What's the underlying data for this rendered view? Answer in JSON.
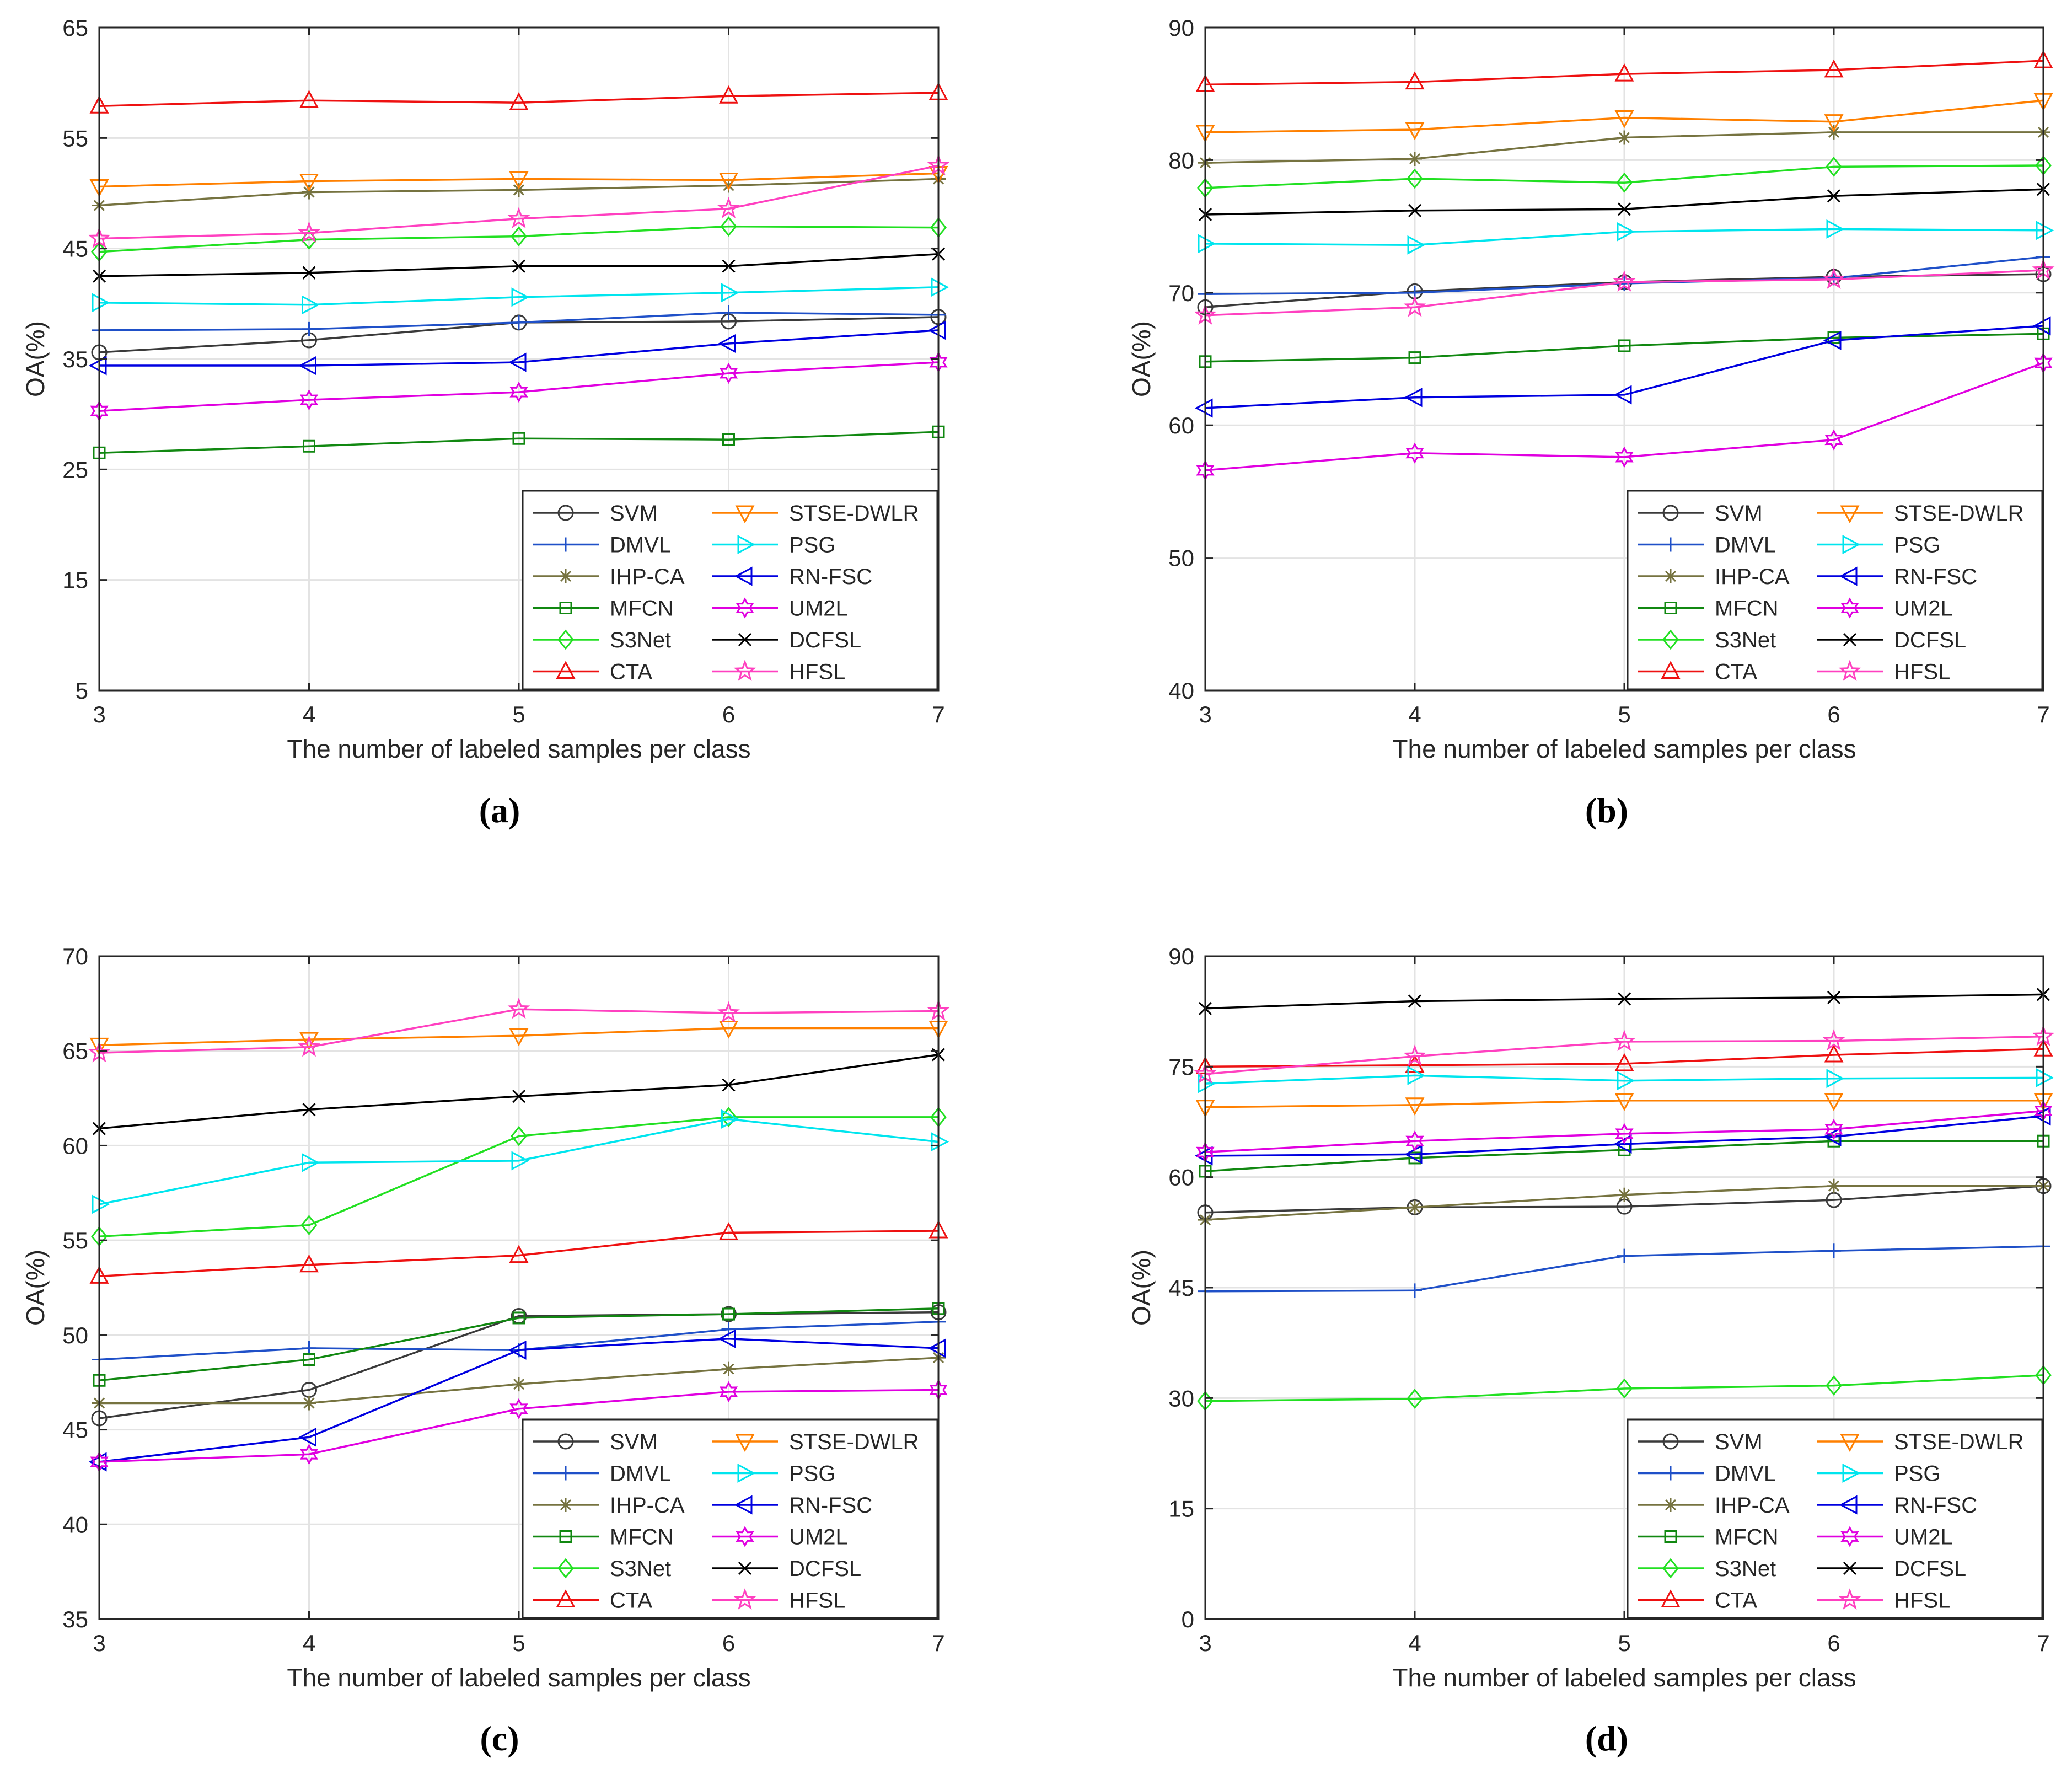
{
  "figure": {
    "captions": [
      "(a)",
      "(b)",
      "(c)",
      "(d)"
    ]
  },
  "legend_style": [
    {
      "name": "SVM",
      "color": "#3a3a3a",
      "marker": "circle"
    },
    {
      "name": "DMVL",
      "color": "#1f50c8",
      "marker": "plus"
    },
    {
      "name": "IHP-CA",
      "color": "#767340",
      "marker": "asterisk"
    },
    {
      "name": "MFCN",
      "color": "#118811",
      "marker": "square"
    },
    {
      "name": "S3Net",
      "color": "#22e022",
      "marker": "diamond"
    },
    {
      "name": "CTA",
      "color": "#ee1111",
      "marker": "triangle-up"
    },
    {
      "name": "STSE-DWLR",
      "color": "#ff8000",
      "marker": "triangle-down"
    },
    {
      "name": "PSG",
      "color": "#00e5ee",
      "marker": "triangle-right"
    },
    {
      "name": "RN-FSC",
      "color": "#0000e0",
      "marker": "triangle-left"
    },
    {
      "name": "UM2L",
      "color": "#e000e0",
      "marker": "hexagram"
    },
    {
      "name": "DCFSL",
      "color": "#000000",
      "marker": "x"
    },
    {
      "name": "HFSL",
      "color": "#ff40c0",
      "marker": "pentagram"
    }
  ],
  "chart_data": [
    {
      "type": "line",
      "caption": "(a)",
      "xlabel": "The number of labeled samples per class",
      "ylabel": "OA(%)",
      "x": [
        3,
        4,
        5,
        6,
        7
      ],
      "xlim": [
        3,
        7
      ],
      "ylim": [
        5,
        65
      ],
      "yticks": [
        5,
        15,
        25,
        35,
        45,
        55,
        65
      ],
      "grid": true,
      "legend_position": "bottom-right",
      "series": [
        {
          "name": "SVM",
          "values": [
            35.6,
            36.7,
            38.3,
            38.4,
            38.8
          ]
        },
        {
          "name": "DMVL",
          "values": [
            37.6,
            37.7,
            38.3,
            39.2,
            39.0
          ]
        },
        {
          "name": "IHP-CA",
          "values": [
            48.9,
            50.1,
            50.3,
            50.7,
            51.3
          ]
        },
        {
          "name": "MFCN",
          "values": [
            26.5,
            27.1,
            27.8,
            27.7,
            28.4
          ]
        },
        {
          "name": "S3Net",
          "values": [
            44.7,
            45.8,
            46.1,
            47.0,
            46.9
          ]
        },
        {
          "name": "CTA",
          "values": [
            57.9,
            58.4,
            58.2,
            58.8,
            59.1
          ]
        },
        {
          "name": "STSE-DWLR",
          "values": [
            50.6,
            51.1,
            51.3,
            51.2,
            51.8
          ]
        },
        {
          "name": "PSG",
          "values": [
            40.1,
            39.9,
            40.6,
            41.0,
            41.5
          ]
        },
        {
          "name": "RN-FSC",
          "values": [
            34.4,
            34.4,
            34.7,
            36.4,
            37.6
          ]
        },
        {
          "name": "UM2L",
          "values": [
            30.3,
            31.3,
            32.0,
            33.7,
            34.7
          ]
        },
        {
          "name": "DCFSL",
          "values": [
            42.5,
            42.8,
            43.4,
            43.4,
            44.5
          ]
        },
        {
          "name": "HFSL",
          "values": [
            45.9,
            46.4,
            47.7,
            48.6,
            52.5
          ]
        }
      ]
    },
    {
      "type": "line",
      "caption": "(b)",
      "xlabel": "The number of labeled samples per class",
      "ylabel": "OA(%)",
      "x": [
        3,
        4,
        5,
        6,
        7
      ],
      "xlim": [
        3,
        7
      ],
      "ylim": [
        40,
        90
      ],
      "yticks": [
        40,
        50,
        60,
        70,
        80,
        90
      ],
      "grid": true,
      "legend_position": "bottom-right",
      "series": [
        {
          "name": "SVM",
          "values": [
            68.9,
            70.1,
            70.8,
            71.2,
            71.4
          ]
        },
        {
          "name": "DMVL",
          "values": [
            69.9,
            70.0,
            70.7,
            71.1,
            72.7
          ]
        },
        {
          "name": "IHP-CA",
          "values": [
            79.8,
            80.1,
            81.7,
            82.1,
            82.1
          ]
        },
        {
          "name": "MFCN",
          "values": [
            64.8,
            65.1,
            66.0,
            66.6,
            66.9
          ]
        },
        {
          "name": "S3Net",
          "values": [
            77.9,
            78.6,
            78.3,
            79.5,
            79.6
          ]
        },
        {
          "name": "CTA",
          "values": [
            85.7,
            85.9,
            86.5,
            86.8,
            87.5
          ]
        },
        {
          "name": "STSE-DWLR",
          "values": [
            82.1,
            82.3,
            83.2,
            82.9,
            84.5
          ]
        },
        {
          "name": "PSG",
          "values": [
            73.7,
            73.6,
            74.6,
            74.8,
            74.7
          ]
        },
        {
          "name": "RN-FSC",
          "values": [
            61.3,
            62.1,
            62.3,
            66.4,
            67.5
          ]
        },
        {
          "name": "UM2L",
          "values": [
            56.6,
            57.9,
            57.6,
            58.9,
            64.7
          ]
        },
        {
          "name": "DCFSL",
          "values": [
            75.9,
            76.2,
            76.3,
            77.3,
            77.8
          ]
        },
        {
          "name": "HFSL",
          "values": [
            68.3,
            68.9,
            70.8,
            71.0,
            71.7
          ]
        }
      ]
    },
    {
      "type": "line",
      "caption": "(c)",
      "xlabel": "The number of labeled samples per class",
      "ylabel": "OA(%)",
      "x": [
        3,
        4,
        5,
        6,
        7
      ],
      "xlim": [
        3,
        7
      ],
      "ylim": [
        35,
        70
      ],
      "yticks": [
        35,
        40,
        45,
        50,
        55,
        60,
        65,
        70
      ],
      "grid": true,
      "legend_position": "bottom-right",
      "series": [
        {
          "name": "SVM",
          "values": [
            45.6,
            47.1,
            51.0,
            51.1,
            51.2
          ]
        },
        {
          "name": "DMVL",
          "values": [
            48.7,
            49.3,
            49.2,
            50.3,
            50.7
          ]
        },
        {
          "name": "IHP-CA",
          "values": [
            46.4,
            46.4,
            47.4,
            48.2,
            48.8
          ]
        },
        {
          "name": "MFCN",
          "values": [
            47.6,
            48.7,
            50.9,
            51.1,
            51.4
          ]
        },
        {
          "name": "S3Net",
          "values": [
            55.2,
            55.8,
            60.5,
            61.5,
            61.5
          ]
        },
        {
          "name": "CTA",
          "values": [
            53.1,
            53.7,
            54.2,
            55.4,
            55.5
          ]
        },
        {
          "name": "STSE-DWLR",
          "values": [
            65.3,
            65.6,
            65.8,
            66.2,
            66.2
          ]
        },
        {
          "name": "PSG",
          "values": [
            56.9,
            59.1,
            59.2,
            61.4,
            60.2
          ]
        },
        {
          "name": "RN-FSC",
          "values": [
            43.3,
            44.6,
            49.2,
            49.8,
            49.3
          ]
        },
        {
          "name": "UM2L",
          "values": [
            43.3,
            43.7,
            46.1,
            47.0,
            47.1
          ]
        },
        {
          "name": "DCFSL",
          "values": [
            60.9,
            61.9,
            62.6,
            63.2,
            64.8
          ]
        },
        {
          "name": "HFSL",
          "values": [
            64.9,
            65.2,
            67.2,
            67.0,
            67.1
          ]
        }
      ]
    },
    {
      "type": "line",
      "caption": "(d)",
      "xlabel": "The number of labeled samples per class",
      "ylabel": "OA(%)",
      "x": [
        3,
        4,
        5,
        6,
        7
      ],
      "xlim": [
        3,
        7
      ],
      "ylim": [
        0,
        90
      ],
      "yticks": [
        0,
        15,
        30,
        45,
        60,
        75,
        90
      ],
      "grid": true,
      "legend_position": "bottom-right",
      "series": [
        {
          "name": "SVM",
          "values": [
            55.2,
            55.9,
            56.0,
            56.9,
            58.8
          ]
        },
        {
          "name": "DMVL",
          "values": [
            44.5,
            44.6,
            49.3,
            50.0,
            50.6
          ]
        },
        {
          "name": "IHP-CA",
          "values": [
            54.2,
            55.9,
            57.6,
            58.8,
            58.8
          ]
        },
        {
          "name": "MFCN",
          "values": [
            60.8,
            62.6,
            63.7,
            64.9,
            64.9
          ]
        },
        {
          "name": "S3Net",
          "values": [
            29.6,
            29.9,
            31.3,
            31.7,
            33.1
          ]
        },
        {
          "name": "CTA",
          "values": [
            75.0,
            75.2,
            75.4,
            76.6,
            77.4
          ]
        },
        {
          "name": "STSE-DWLR",
          "values": [
            69.5,
            69.8,
            70.4,
            70.4,
            70.4
          ]
        },
        {
          "name": "PSG",
          "values": [
            72.7,
            73.8,
            73.1,
            73.4,
            73.5
          ]
        },
        {
          "name": "RN-FSC",
          "values": [
            62.9,
            63.1,
            64.5,
            65.5,
            68.3
          ]
        },
        {
          "name": "UM2L",
          "values": [
            63.4,
            64.9,
            65.9,
            66.5,
            69.0
          ]
        },
        {
          "name": "DCFSL",
          "values": [
            82.9,
            83.9,
            84.2,
            84.4,
            84.8
          ]
        },
        {
          "name": "HFSL",
          "values": [
            74.0,
            76.4,
            78.4,
            78.5,
            79.1
          ]
        }
      ]
    }
  ]
}
